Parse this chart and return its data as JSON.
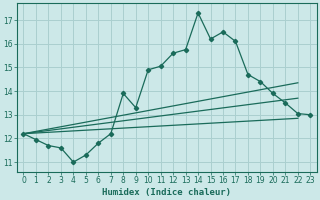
{
  "xlabel": "Humidex (Indice chaleur)",
  "ylabel": "",
  "bg_color": "#cce8e8",
  "grid_color": "#aacfcf",
  "line_color": "#1a6b5a",
  "xlim": [
    -0.5,
    23.5
  ],
  "ylim": [
    10.6,
    17.7
  ],
  "yticks": [
    11,
    12,
    13,
    14,
    15,
    16,
    17
  ],
  "xticks": [
    0,
    1,
    2,
    3,
    4,
    5,
    6,
    7,
    8,
    9,
    10,
    11,
    12,
    13,
    14,
    15,
    16,
    17,
    18,
    19,
    20,
    21,
    22,
    23
  ],
  "main_series_x": [
    0,
    1,
    2,
    3,
    4,
    5,
    6,
    7,
    8,
    9,
    10,
    11,
    12,
    13,
    14,
    15,
    16,
    17,
    18,
    19,
    20,
    21,
    22,
    23
  ],
  "main_series_y": [
    12.2,
    11.95,
    11.7,
    11.6,
    11.0,
    11.3,
    11.8,
    12.2,
    13.9,
    13.3,
    14.9,
    15.05,
    15.6,
    15.75,
    17.3,
    16.2,
    16.5,
    16.1,
    14.7,
    14.4,
    13.9,
    13.5,
    13.05,
    13.0
  ],
  "line1_x": [
    0,
    22
  ],
  "line1_y": [
    12.2,
    14.35
  ],
  "line2_x": [
    0,
    22
  ],
  "line2_y": [
    12.2,
    13.7
  ],
  "line3_x": [
    0,
    22
  ],
  "line3_y": [
    12.2,
    12.85
  ]
}
